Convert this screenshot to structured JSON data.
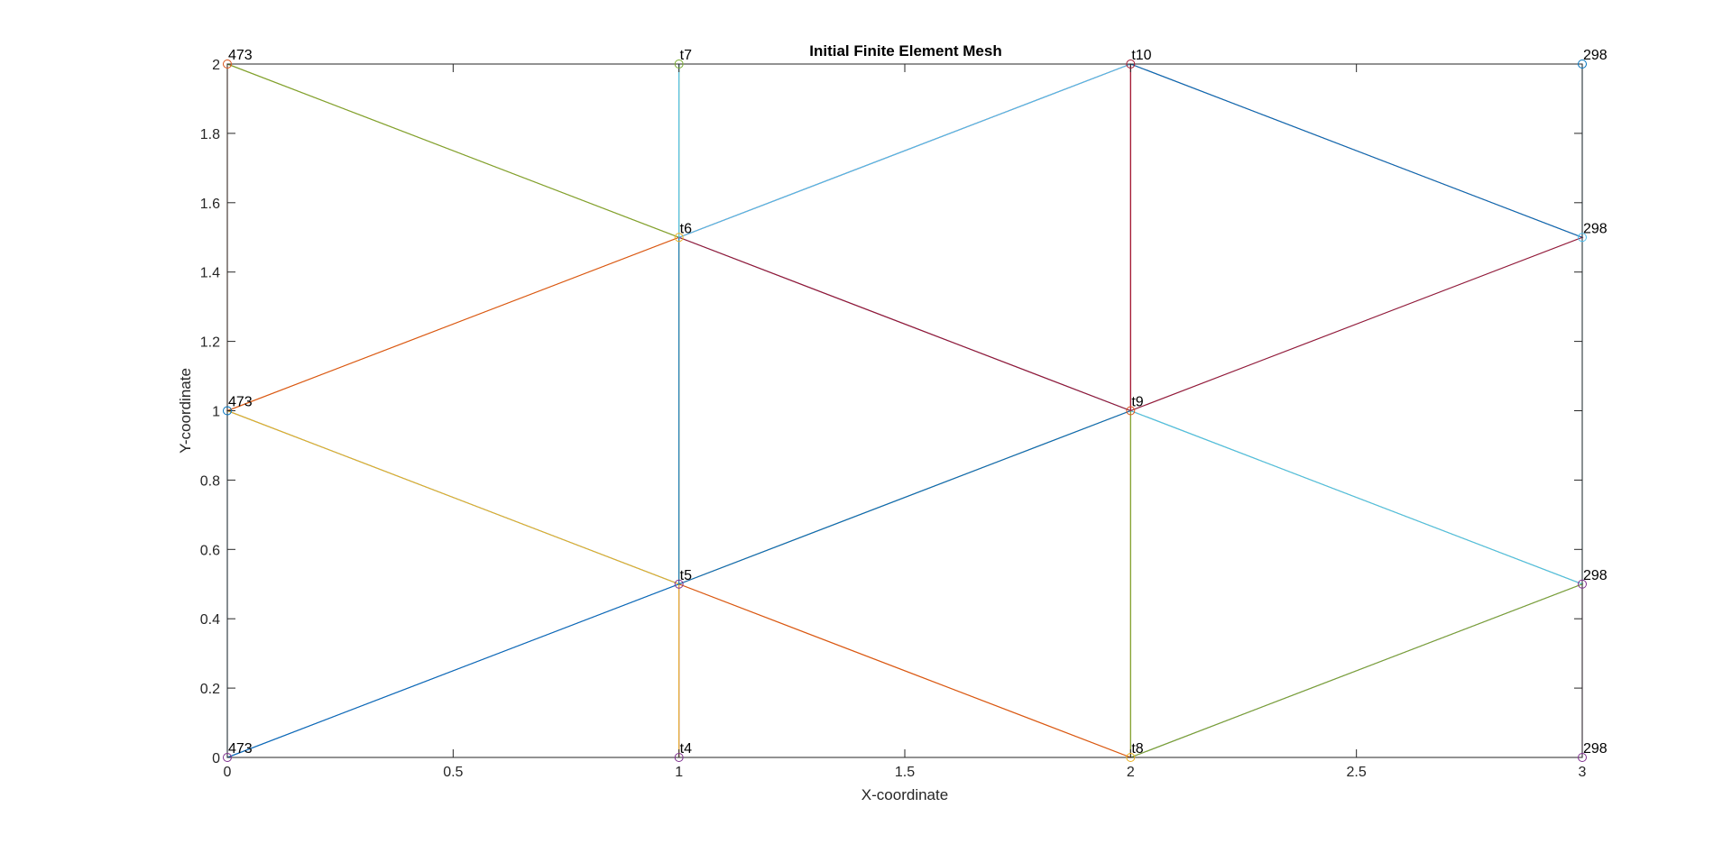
{
  "chart_data": {
    "type": "line",
    "title": "Initial Finite Element Mesh",
    "xlabel": "X-coordinate",
    "ylabel": "Y-coordinate",
    "xlim": [
      0,
      3
    ],
    "ylim": [
      0,
      2
    ],
    "grid": false,
    "xticks": [
      0,
      0.5,
      1,
      1.5,
      2,
      2.5,
      3
    ],
    "xtick_labels": [
      "0",
      "0.5",
      "1",
      "1.5",
      "2",
      "2.5",
      "3"
    ],
    "yticks": [
      0,
      0.2,
      0.4,
      0.6,
      0.8,
      1,
      1.2,
      1.4,
      1.6,
      1.8,
      2
    ],
    "ytick_labels": [
      "0",
      "0.2",
      "0.4",
      "0.6",
      "0.8",
      "1",
      "1.2",
      "1.4",
      "1.6",
      "1.8",
      "2"
    ],
    "nodes": [
      {
        "x": 0,
        "y": 0,
        "label": "473"
      },
      {
        "x": 0,
        "y": 1,
        "label": "473"
      },
      {
        "x": 0,
        "y": 2,
        "label": "473"
      },
      {
        "x": 1,
        "y": 0,
        "label": "t4"
      },
      {
        "x": 1,
        "y": 0.5,
        "label": "t5"
      },
      {
        "x": 1,
        "y": 1.5,
        "label": "t6"
      },
      {
        "x": 1,
        "y": 2,
        "label": "t7"
      },
      {
        "x": 2,
        "y": 0,
        "label": "t8"
      },
      {
        "x": 2,
        "y": 1,
        "label": "t9"
      },
      {
        "x": 2,
        "y": 2,
        "label": "t10"
      },
      {
        "x": 3,
        "y": 0,
        "label": "298"
      },
      {
        "x": 3,
        "y": 0.5,
        "label": "298"
      },
      {
        "x": 3,
        "y": 1.5,
        "label": "298"
      },
      {
        "x": 3,
        "y": 2,
        "label": "298"
      }
    ],
    "elements": [
      {
        "nodes": [
          0,
          3,
          4
        ],
        "color": "#7E2F8E"
      },
      {
        "nodes": [
          0,
          4,
          1
        ],
        "color": "#0072BD"
      },
      {
        "nodes": [
          1,
          4,
          5
        ],
        "color": "#EDB120"
      },
      {
        "nodes": [
          1,
          5,
          2
        ],
        "color": "#D95319"
      },
      {
        "nodes": [
          2,
          5,
          6
        ],
        "color": "#77AC30"
      },
      {
        "nodes": [
          3,
          7,
          4
        ],
        "color": "#EDB120"
      },
      {
        "nodes": [
          4,
          7,
          8
        ],
        "color": "#D95319"
      },
      {
        "nodes": [
          4,
          8,
          5
        ],
        "color": "#0072BD"
      },
      {
        "nodes": [
          5,
          8,
          9
        ],
        "color": "#A2142F"
      },
      {
        "nodes": [
          5,
          9,
          6
        ],
        "color": "#4DBEEE"
      },
      {
        "nodes": [
          7,
          10,
          11
        ],
        "color": "#7E2F8E"
      },
      {
        "nodes": [
          7,
          11,
          8
        ],
        "color": "#77AC30"
      },
      {
        "nodes": [
          8,
          11,
          12
        ],
        "color": "#4DBEEE"
      },
      {
        "nodes": [
          8,
          12,
          9
        ],
        "color": "#A2142F"
      },
      {
        "nodes": [
          9,
          12,
          13
        ],
        "color": "#0072BD"
      }
    ]
  }
}
